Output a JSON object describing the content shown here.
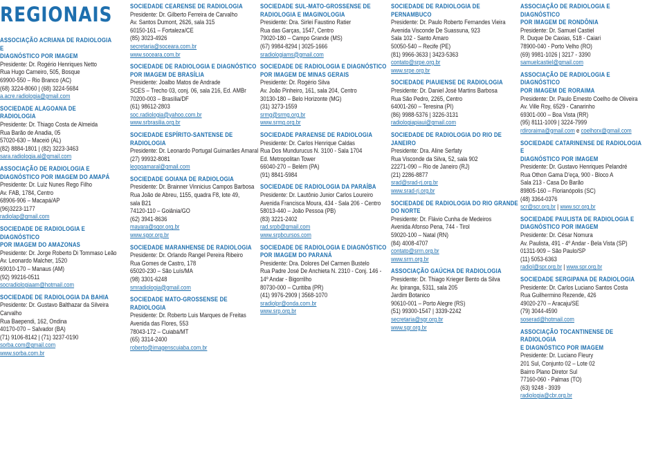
{
  "title": "REGIONAIS",
  "columns": [
    [
      {
        "name": [
          "ASSOCIAÇÃO ACRIANA DE RADIOLOGIA E",
          "DIAGNÓSTICO POR IMAGEM"
        ],
        "lines": [
          "Presidente: Dr. Rogério Henriques Netto",
          "Rua Hugo Carneiro, 505, Bosque",
          "69900-550 – Rio Branco (AC)",
          "(68) 3224-8060 | (68) 3224-5684"
        ],
        "links": [
          "a.acre.radiologia@gmail.com"
        ]
      },
      {
        "name": [
          "SOCIEDADE ALAGOANA DE RADIOLOGIA"
        ],
        "lines": [
          "Presidente: Dr. Thiago Costa de Almeida",
          "Rua Barão de Anadia, 05",
          "57020-630 – Maceió (AL)",
          "(82) 8884-1801 | (82) 3223-3463"
        ],
        "links": [
          "sara.radiologia.al@gmail.com"
        ]
      },
      {
        "name": [
          "ASSOCIAÇÃO DE RADIOLOGIA E",
          "DIAGNÓSTICO POR IMAGEM DO AMAPÁ"
        ],
        "lines": [
          "Presidente: Dr. Luiz Nunes Rego Filho",
          "Av. FAB, 1784, Centro",
          "68906-906 – Macapá/AP",
          "(96)3223-1177"
        ],
        "links": [
          "radiolap@gmail.com"
        ]
      },
      {
        "name": [
          "SOCIEDADE DE RADIOLOGIA E DIAGNÓSTICO",
          "POR IMAGEM DO AMAZONAS"
        ],
        "lines": [
          "Presidente: Dr. Jorge Roberto Di Tommaso Leão",
          "Av. Leonardo Malcher, 1520",
          "69010-170 – Manaus (AM)",
          "(92) 99216-0511"
        ],
        "links": [
          "socradiologiaam@hotmail.com"
        ]
      },
      {
        "name": [
          "SOCIEDADE DE RADIOLOGIA DA BAHIA"
        ],
        "lines": [
          "Presidente: Dr. Gustavo Balthazar da Silveira",
          "Carvalho",
          "Rua Baependi, 162, Ondina",
          "40170-070 – Salvador (BA)",
          "(71) 9106-8142 | (71) 3237-0190"
        ],
        "links": [
          "sorba.com@gmail.com",
          "www.sorba.com.br"
        ]
      }
    ],
    [
      {
        "name": [
          "SOCIEDADE CEARENSE DE RADIOLOGIA"
        ],
        "lines": [
          "Presidente: Dr. Gilberto Ferreira de Carvalho",
          "Av. Santos Dumont, 2626, sala 315",
          "60150-161 – Fortaleza/CE",
          "(85) 3023-4926"
        ],
        "links": [
          "secretaria@soceara.com.br",
          "www.soceara.com.br"
        ]
      },
      {
        "name": [
          "SOCIEDADE DE RADIOLOGIA E DIAGNÓSTICO",
          "POR IMAGEM DE BRASÍLIA"
        ],
        "lines": [
          "Presidente: Joalbo Matos de Andrade",
          "SCES – Trecho 03, conj. 06, sala 216, Ed. AMBr",
          "70200-003 – Brasília/DF",
          "(61) 98612-2803"
        ],
        "links": [
          "soc.radiologia@yahoo.com.br",
          "www.srbrasilia.org.br"
        ]
      },
      {
        "name": [
          "SOCIEDADE ESPÍRITO-SANTENSE DE",
          "RADIOLOGIA"
        ],
        "lines": [
          "Presidente: Dr. Leonardo Portugal Guimarães Amaral",
          "(27) 99932-8081"
        ],
        "links": [
          "leopgamaral@gmail.com"
        ]
      },
      {
        "name": [
          "SOCIEDADE GOIANA DE RADIOLOGIA"
        ],
        "lines": [
          "Presidente: Dr. Brainner Vinnicius Campos Barbosa",
          "Rua João de Abreu, 1155, quadra F8, lote 49,",
          "sala B21",
          "74120-110 – Goiânia/GO",
          "(62) 3941-8636"
        ],
        "links": [
          "mayara@sgor.org.br",
          "www.sgor.org.br"
        ]
      },
      {
        "name": [
          "SOCIEDADE MARANHENSE DE RADIOLOGIA"
        ],
        "lines": [
          "Presidente: Dr. Orlando Rangel Pereira Ribeiro",
          "Rua Gomes de Castro, 178",
          "65020-230 – São Luís/MA",
          "(98) 3301-6248"
        ],
        "links": [
          "smradiologia@gmail.com"
        ]
      },
      {
        "name": [
          "SOCIEDADE MATO-GROSSENSE DE",
          "RADIOLOGIA"
        ],
        "lines": [
          "Presidente: Dr. Roberto Luis Marques de Freitas",
          "Avenida das Flores, 553",
          "78043-172 – Cuiabá/MT",
          "(65) 3314-2400"
        ],
        "links": [
          "roberto@imagenscuiaba.com.br"
        ]
      }
    ],
    [
      {
        "name": [
          "SOCIEDADE SUL-MATO-GROSSENSE DE",
          "RADIOLOGIA E IMAGINOLOGIA"
        ],
        "lines": [
          "Presidente: Dra. Sirlei Faustino Ratier",
          "Rua das Garças, 1547, Centro",
          "79020-180 – Campo Grande (MS)",
          "(67) 9984-8294 | 3025-1666"
        ],
        "links": [
          "sradiologiams@gmail.com"
        ]
      },
      {
        "name": [
          "SOCIEDADE DE RADIOLOGIA E DIAGNÓSTICO",
          "POR IMAGEM DE MINAS GERAIS"
        ],
        "lines": [
          "Presidente: Dr. Rogério Silva",
          "Av. João Pinheiro, 161, sala 204, Centro",
          "30130-180 – Belo Horizonte (MG)",
          "(31) 3273-1559"
        ],
        "links": [
          "srmg@srmg.org.br",
          "www.srmg.org.br"
        ]
      },
      {
        "name": [
          "SOCIEDADE PARAENSE DE RADIOLOGIA"
        ],
        "lines": [
          "Presidente: Dr. Carlos Henrique Caldas",
          "Rua Dos Mundurucus N. 3100 - Sala 1704",
          "Ed. Metropolitan Tower",
          "66040-270 – Belém (PA)",
          "(91) 8841-5984"
        ],
        "links": []
      },
      {
        "name": [
          "SOCIEDADE DE RADIOLOGIA DA PARAÍBA"
        ],
        "lines": [
          "Presidente: Dr. Lautônio Junior Carlos Loureiro",
          "Avenida Francisca Moura, 434 - Sala 206 - Centro",
          "58013-440 – João Pessoa (PB)",
          "(83) 3221-2402"
        ],
        "links": [
          "rad.srpb@gmail.com",
          "www.srpbcursos.com"
        ]
      },
      {
        "name": [
          "SOCIEDADE DE RADIOLOGIA E DIAGNÓSTICO",
          "POR IMAGEM DO PARANÁ"
        ],
        "lines": [
          "Presidente: Dra. Dolores Del Carmen Bustelo",
          "Rua Padre José De Anchieta N. 2310 - Conj. 146 -",
          "14º Andar - Bigorrilho",
          "80730-000 – Curitiba (PR)",
          "(41) 9976-2909 | 3568-1070"
        ],
        "links": [
          "sradiolpr@onda.com.br",
          "www.srp.org.br"
        ]
      }
    ],
    [
      {
        "name": [
          "SOCIEDADE DE RADIOLOGIA DE",
          "PERNAMBUCO"
        ],
        "lines": [
          "Presidente: Dr. Paulo Roberto Fernandes Vieira",
          "Avenida Visconde De Suassuna, 923",
          "Sala 102 - Santo Amaro",
          "50050-540 – Recife (PE)",
          "(81) 9966-3633 | 3423-5363"
        ],
        "links": [
          "contato@srpe.org.br",
          "www.srpe.org.br"
        ]
      },
      {
        "name": [
          "SOCIEDADE PIAUIENSE DE RADIOLOGIA"
        ],
        "lines": [
          "Presidente: Dr. Daniel José Martins Barbosa",
          "Rua São Pedro, 2265, Centro",
          "64001-260 – Teresina (PI)",
          "(86) 9988-5376 | 3226-3131"
        ],
        "links": [
          "radiologiapiaui@gmail.com"
        ]
      },
      {
        "name": [
          "SOCIEDADE DE RADIOLOGIA DO RIO DE",
          "JANEIRO"
        ],
        "lines": [
          "Presidente: Dra. Aline Serfaty",
          "Rua Visconde da Silva, 52, sala 902",
          "22271-090 – Rio de Janeiro (RJ)",
          "(21) 2286-8877"
        ],
        "links": [
          "srad@srad-rj.org.br",
          "www.srad-rj.org.br"
        ]
      },
      {
        "name": [
          "SOCIEDADE DE RADIOLOGIA DO RIO GRANDE",
          "DO NORTE"
        ],
        "lines": [
          "Presidente: Dr. Flávio Cunha de Medeiros",
          "Avenida Afonso Pena, 744 - Tirol",
          "59020-100 – Natal (RN)",
          "(84) 4008-4707"
        ],
        "links": [
          "contato@srrn.org.br",
          "www.srrn.org.br"
        ]
      },
      {
        "name": [
          "ASSOCIAÇÃO GAÚCHA DE RADIOLOGIA"
        ],
        "lines": [
          "Presidente: Dr. Thiago Krieger Bento da Silva",
          "Av. Ipiranga, 5311, sala 205",
          "Jardim Botanico",
          "90610-001 – Porto Alegre (RS)",
          "(51) 99300-1547 | 3339-2242"
        ],
        "links": [
          "secretaria@sgr.org.br",
          "www.sgr.org.br"
        ]
      }
    ],
    [
      {
        "name": [
          "ASSOCIAÇÃO DE RADIOLOGIA E DIAGNÓSTICO",
          "POR IMAGEM DE RONDÔNIA"
        ],
        "lines": [
          "Presidente: Dr. Samuel Castiel",
          "R. Duque De Caxias, 518 - Caiari",
          "78900-040 - Porto Velho (RO)",
          "(69) 9981-1026 | 3217 - 3390"
        ],
        "links": [
          "samuelcastiel@gmail.com"
        ]
      },
      {
        "name": [
          "ASSOCIAÇÃO DE RADIOLOGIA E DIAGNÓSTICO",
          "POR IMAGEM DE RORAIMA"
        ],
        "lines": [
          "Presidente: Dr. Paulo Ernesto Coelho de Oliveira",
          "Av. Ville Roy, 6529 - Canarinho",
          "69301-000 – Boa Vista (RR)",
          "(95) 8111-1009 | 3224-7999"
        ],
        "links": [
          "rdiroraima@gmail.com",
          "coelhorx@gmail.com"
        ],
        "link_join": " e "
      },
      {
        "name": [
          "SOCIEDADE CATARINENSE DE RADIOLOGIA E",
          "DIAGNÓSTICO POR IMAGEM"
        ],
        "lines": [
          "Presidente: Dr. Gustavo Henriques Pelandré",
          "Rua Othon Gama D’eça, 900 - Bloco A",
          "Sala 213 - Casa Do Barão",
          "89805-160 – Florianópolis (SC)",
          "(48) 3364-0376"
        ],
        "links": [
          "scr@scr.org.br",
          "www.scr.org.br"
        ],
        "link_join": " | "
      },
      {
        "name": [
          "SOCIEDADE PAULISTA DE RADIOLOGIA E",
          "DIAGNÓSTICO POR IMAGEM"
        ],
        "lines": [
          "Presidente: Dr. César Nomura",
          "Av. Paulista, 491 - 4º Andar - Bela Vista (SP)",
          "01311-909 – São Paulo/SP",
          "(11) 5053-6363"
        ],
        "links": [
          "radiol@spr.org.br",
          "www.spr.org.br"
        ],
        "link_join": " | "
      },
      {
        "name": [
          "SOCIEDADE SERGIPANA DE RADIOLOGIA"
        ],
        "lines": [
          "Presidente: Dr. Carlos Luciano Santos Costa",
          "Rua Guilhermino Rezende, 426",
          "49020-270 – Aracaju/SE",
          "(79) 3044-4590"
        ],
        "links": [
          "soserad@hotmail.com"
        ]
      },
      {
        "name": [
          "ASSOCIAÇÃO TOCANTINENSE DE RADIOLOGIA",
          "E DIAGNÓSTICO POR IMAGEM"
        ],
        "lines": [
          "Presidente: Dr. Luciano Fleury",
          "201 Sul, Conjunto 02 – Lote 02",
          "Bairro Plano Diretor Sul",
          "77160-060 - Palmas (TO)",
          "(63) 9248 - 3939"
        ],
        "links": [
          "radiologia@cbr.org.br"
        ]
      }
    ]
  ]
}
